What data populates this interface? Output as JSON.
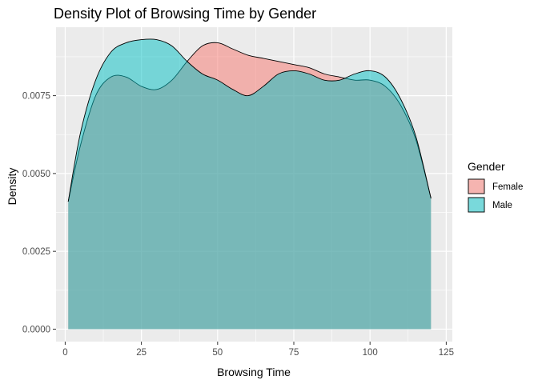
{
  "chart_data": {
    "type": "area",
    "subtype": "density",
    "title": "Density Plot of Browsing Time by Gender",
    "xlabel": "Browsing Time",
    "ylabel": "Density",
    "xlim": [
      -3,
      127
    ],
    "ylim": [
      -0.0004,
      0.0097
    ],
    "x_ticks": [
      0,
      25,
      50,
      75,
      100,
      125
    ],
    "x_tick_labels": [
      "0",
      "25",
      "50",
      "75",
      "100",
      "125"
    ],
    "y_ticks": [
      0.0,
      0.0025,
      0.005,
      0.0075
    ],
    "y_tick_labels": [
      "0.0000",
      "0.0025",
      "0.0050",
      "0.0075"
    ],
    "grid": true,
    "legend": {
      "title": "Gender",
      "position": "right",
      "entries": [
        "Female",
        "Male"
      ]
    },
    "x": [
      1,
      5,
      10,
      15,
      20,
      25,
      30,
      35,
      40,
      45,
      50,
      55,
      60,
      65,
      70,
      75,
      80,
      85,
      90,
      95,
      100,
      105,
      110,
      115,
      120
    ],
    "series": [
      {
        "name": "Female",
        "color": "#F8766D",
        "values": [
          0.0041,
          0.0059,
          0.0075,
          0.0081,
          0.0081,
          0.0078,
          0.0077,
          0.008,
          0.0086,
          0.0091,
          0.0092,
          0.009,
          0.0088,
          0.0087,
          0.0086,
          0.0085,
          0.0084,
          0.0082,
          0.0081,
          0.008,
          0.008,
          0.0078,
          0.0072,
          0.0061,
          0.0042
        ]
      },
      {
        "name": "Male",
        "color": "#00BFC4",
        "values": [
          0.0041,
          0.0063,
          0.008,
          0.0089,
          0.0092,
          0.0093,
          0.0093,
          0.0091,
          0.0086,
          0.0082,
          0.008,
          0.0077,
          0.0075,
          0.0078,
          0.0082,
          0.0083,
          0.0082,
          0.008,
          0.008,
          0.0082,
          0.0083,
          0.0081,
          0.0074,
          0.0062,
          0.0042
        ]
      }
    ]
  }
}
